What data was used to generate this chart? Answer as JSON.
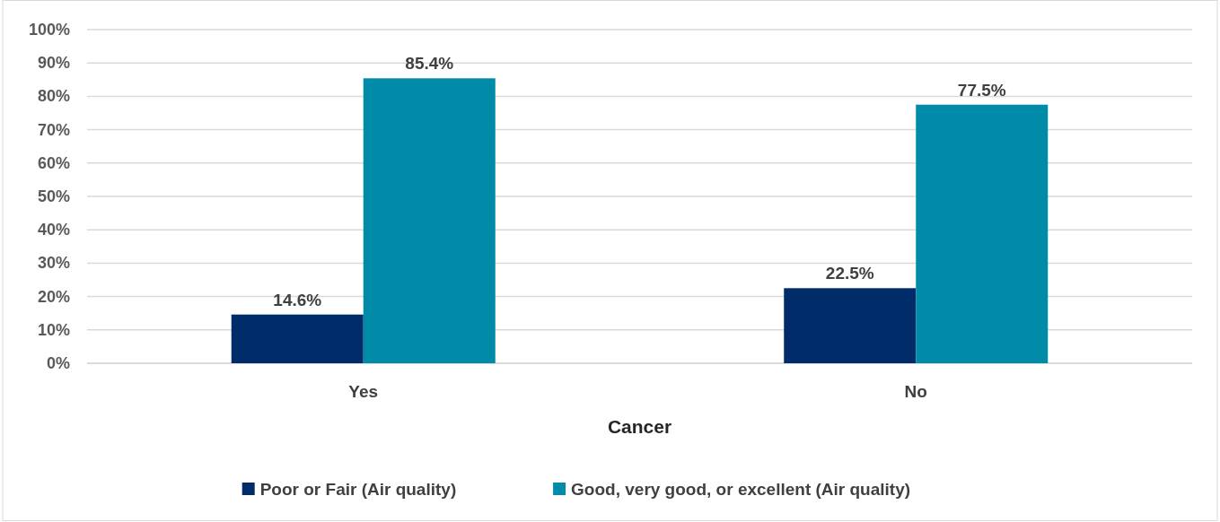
{
  "chart_data": {
    "type": "bar",
    "xlabel": "Cancer",
    "categories": [
      "Yes",
      "No"
    ],
    "series": [
      {
        "name": "Poor or Fair (Air quality)",
        "color": "#002d6a",
        "values": [
          14.6,
          22.5
        ],
        "value_labels": [
          "14.6%",
          "22.5%"
        ]
      },
      {
        "name": "Good, very good, or excellent (Air quality)",
        "color": "#008ca8",
        "values": [
          85.4,
          77.5
        ],
        "value_labels": [
          "85.4%",
          "77.5%"
        ]
      }
    ],
    "ylim": [
      0,
      100
    ],
    "yticks": [
      {
        "value": 0,
        "label": "0%"
      },
      {
        "value": 10,
        "label": "10%"
      },
      {
        "value": 20,
        "label": "20%"
      },
      {
        "value": 30,
        "label": "30%"
      },
      {
        "value": 40,
        "label": "40%"
      },
      {
        "value": 50,
        "label": "50%"
      },
      {
        "value": 60,
        "label": "60%"
      },
      {
        "value": 70,
        "label": "70%"
      },
      {
        "value": 80,
        "label": "80%"
      },
      {
        "value": 90,
        "label": "90%"
      },
      {
        "value": 100,
        "label": "100%"
      }
    ],
    "grid": "y",
    "legend": "bottom"
  }
}
